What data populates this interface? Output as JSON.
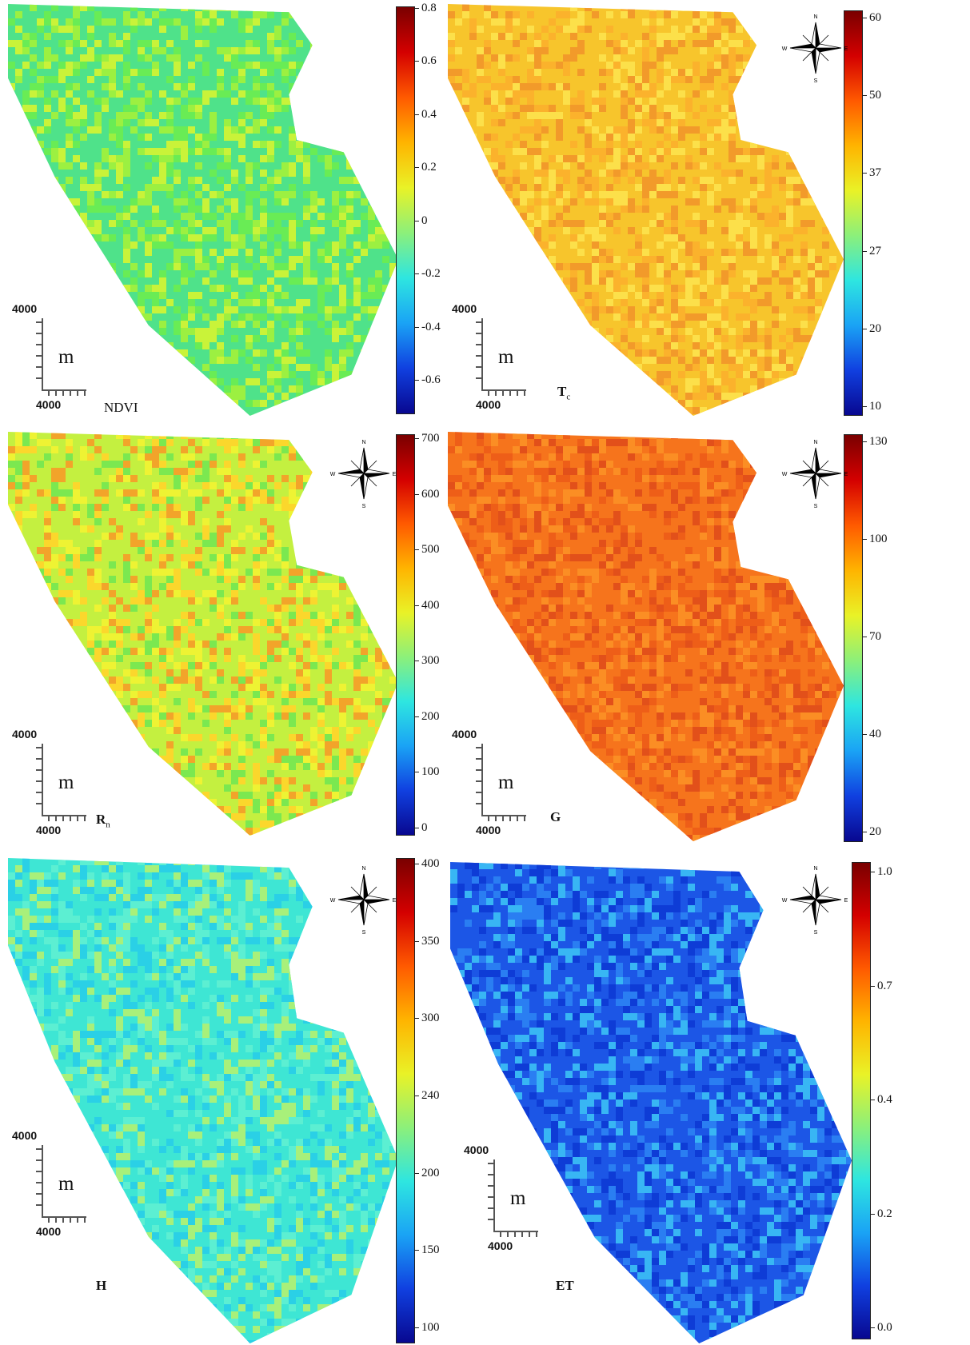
{
  "scale_bar": {
    "value": "4000",
    "unit": "m"
  },
  "compass": {
    "n": "N",
    "s": "S",
    "e": "E",
    "w": "W"
  },
  "panels": [
    {
      "id": "ndvi",
      "label": "NDVI",
      "sub": "",
      "palette": [
        "#4fe28a",
        "#69ec55",
        "#9cf041",
        "#c9f339"
      ],
      "ticks": [
        "0.8",
        "0.6",
        "0.4",
        "0.2",
        "0",
        "-0.2",
        "-0.4",
        "-0.6"
      ],
      "compass": false
    },
    {
      "id": "tc",
      "label": "T",
      "sub": "c",
      "palette": [
        "#f7c52c",
        "#fbb22c",
        "#f29a2a",
        "#fce04a"
      ],
      "ticks": [
        "60",
        "50",
        "37",
        "27",
        "20",
        "10"
      ],
      "compass": true
    },
    {
      "id": "rn",
      "label": "R",
      "sub": "n",
      "palette": [
        "#c4f040",
        "#eef333",
        "#fbd72c",
        "#f2a42a",
        "#7be850"
      ],
      "ticks": [
        "700",
        "600",
        "500",
        "400",
        "300",
        "200",
        "100",
        "0"
      ],
      "compass": true
    },
    {
      "id": "g",
      "label": "G",
      "sub": "",
      "palette": [
        "#f6741c",
        "#ee5e18",
        "#fb8e24",
        "#e2501a"
      ],
      "ticks": [
        "130",
        "100",
        "70",
        "40",
        "20"
      ],
      "compass": true
    },
    {
      "id": "h",
      "label": "H",
      "sub": "",
      "palette": [
        "#3ee6d4",
        "#5cefd2",
        "#a8f07a",
        "#2ad0e6"
      ],
      "ticks": [
        "400",
        "350",
        "300",
        "240",
        "200",
        "150",
        "100"
      ],
      "compass": true
    },
    {
      "id": "et",
      "label": "ET",
      "sub": "",
      "palette": [
        "#1c56e6",
        "#2a7ef2",
        "#0e3cd6",
        "#38b6f4"
      ],
      "ticks": [
        "1.0",
        "0.7",
        "0.4",
        "0.2",
        "0.0"
      ],
      "compass": true
    }
  ]
}
